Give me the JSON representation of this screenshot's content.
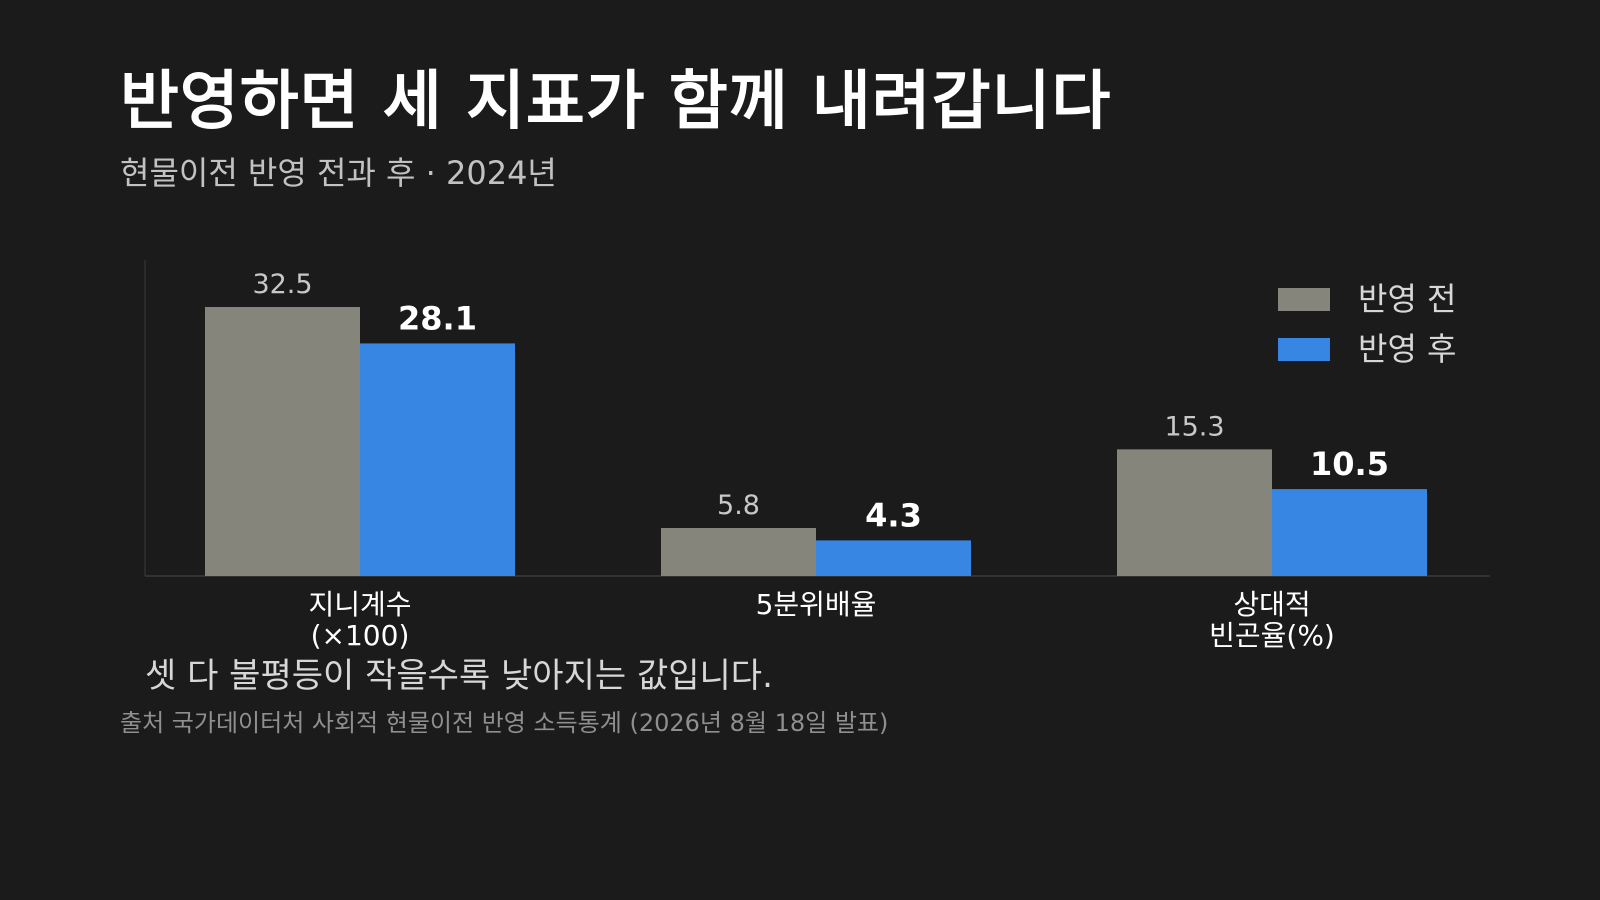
{
  "title": "반영하면 세 지표가 함께 내려갑니다",
  "subtitle": "현물이전 반영 전과 후 · 2024년",
  "note": "셋 다 불평등이 작을수록 낮아지는 값입니다.",
  "source": "출처 국가데이터처 사회적 현물이전 반영 소득통계 (2026년 8월 18일 발표)",
  "colors": {
    "background": "#1b1b1b",
    "before": "#86857c",
    "after": "#3786e3",
    "axis": "#3a3a3a",
    "label_before": "#c8c8c8",
    "label_after": "#ffffff",
    "category_label": "#ffffff",
    "legend_text": "#d7d7d7"
  },
  "chart_data": {
    "type": "bar",
    "title": "반영하면 세 지표가 함께 내려갑니다",
    "subtitle": "현물이전 반영 전과 후 · 2024년",
    "categories": [
      [
        "지니계수",
        "(×100)"
      ],
      [
        "5분위배율"
      ],
      [
        "상대적",
        "빈곤율(%)"
      ]
    ],
    "series": [
      {
        "name": "반영 전",
        "values": [
          32.5,
          5.8,
          15.3
        ],
        "color": "#86857c"
      },
      {
        "name": "반영 후",
        "values": [
          28.1,
          4.3,
          10.5
        ],
        "color": "#3786e3"
      }
    ],
    "data_labels": [
      [
        "32.5",
        "5.8",
        "15.3"
      ],
      [
        "28.1",
        "4.3",
        "10.5"
      ]
    ],
    "ylim": [
      0,
      32.5
    ],
    "grid": false,
    "legend_position": "top-right",
    "xlabel": "",
    "ylabel": ""
  }
}
